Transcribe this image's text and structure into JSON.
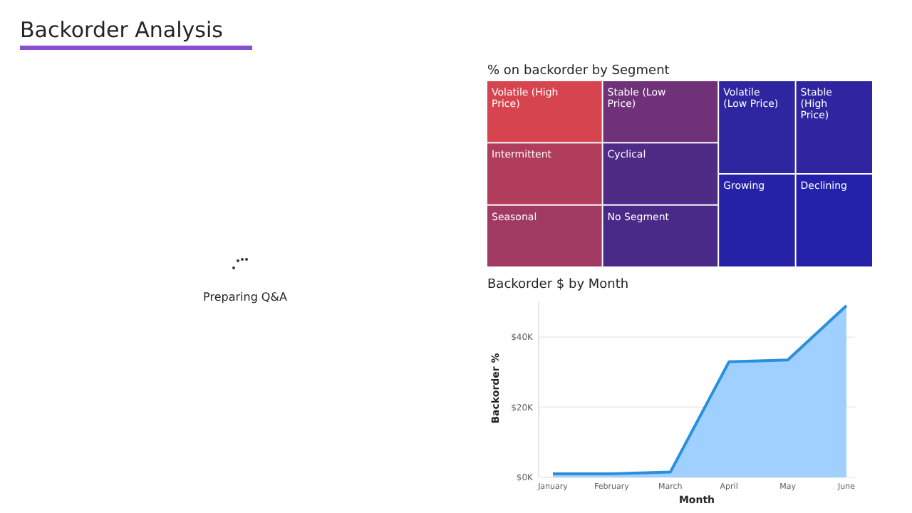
{
  "chart_data": [
    {
      "type": "other",
      "title": "Backorder Analysis",
      "annotations": [
        "Preparing Q&A"
      ]
    },
    {
      "type": "other",
      "title": "% on backorder by Segment",
      "categories": [
        "Volatile (High Price)",
        "Intermittent",
        "Seasonal",
        "Stable (Low Price)",
        "Cyclical",
        "No Segment",
        "Volatile (Low Price)",
        "Stable (High Price)",
        "Growing",
        "Declining"
      ],
      "colors": [
        "#d6454f",
        "#b03d5c",
        "#a13a62",
        "#6f3178",
        "#4f2b86",
        "#4a2a88",
        "#2e25a0",
        "#2f25a0",
        "#2622a8",
        "#2321aa"
      ]
    },
    {
      "type": "area",
      "title": "Backorder $ by Month",
      "xlabel": "Month",
      "ylabel": "Backorder %",
      "categories": [
        "January",
        "February",
        "March",
        "April",
        "May",
        "June"
      ],
      "series": [
        {
          "color": "#2b8fdc",
          "values": [
            1000,
            1000,
            1500,
            33000,
            33500,
            49000
          ]
        }
      ],
      "ylim": [
        0,
        50000
      ],
      "yticks": [
        {
          "value": 0,
          "label": "$0K"
        },
        {
          "value": 20000,
          "label": "$20K"
        },
        {
          "value": 40000,
          "label": "$40K"
        }
      ],
      "grid": "y"
    }
  ]
}
